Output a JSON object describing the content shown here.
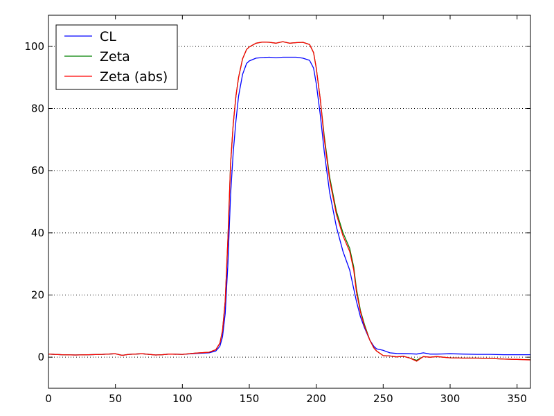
{
  "chart_data": {
    "type": "line",
    "xlim": [
      0,
      360
    ],
    "ylim": [
      -10,
      110
    ],
    "xticks": [
      0,
      50,
      100,
      150,
      200,
      250,
      300,
      350
    ],
    "yticks": [
      0,
      20,
      40,
      60,
      80,
      100
    ],
    "grid": "horizontal-dotted",
    "legend_position": "top-left",
    "series": [
      {
        "name": "CL",
        "color": "#0000ff",
        "x": [
          0,
          10,
          20,
          30,
          40,
          50,
          55,
          60,
          70,
          80,
          85,
          90,
          100,
          110,
          120,
          125,
          128,
          130,
          132,
          134,
          136,
          138,
          140,
          142,
          145,
          148,
          150,
          155,
          160,
          165,
          170,
          175,
          180,
          185,
          190,
          195,
          198,
          200,
          203,
          206,
          210,
          215,
          220,
          225,
          228,
          230,
          233,
          236,
          240,
          243,
          245,
          250,
          255,
          260,
          270,
          275,
          280,
          285,
          290,
          300,
          310,
          320,
          330,
          340,
          350,
          360
        ],
        "y": [
          1.0,
          0.8,
          0.7,
          0.8,
          0.9,
          1.1,
          0.6,
          0.9,
          1.1,
          0.7,
          0.8,
          1.0,
          0.9,
          1.2,
          1.4,
          2.0,
          3.5,
          6.5,
          14,
          30,
          52,
          66,
          76,
          84,
          91,
          94.5,
          95.3,
          96.2,
          96.4,
          96.5,
          96.3,
          96.5,
          96.5,
          96.5,
          96.2,
          95.5,
          93,
          88,
          78,
          66,
          53,
          42,
          34,
          28,
          22,
          18,
          13,
          9.5,
          5.5,
          3.5,
          2.7,
          2.2,
          1.4,
          1.2,
          1.1,
          1.0,
          1.4,
          1.0,
          1.0,
          1.1,
          1.0,
          0.9,
          0.9,
          0.8,
          0.8,
          0.8
        ]
      },
      {
        "name": "Zeta",
        "color": "#008000",
        "x": [
          0,
          10,
          20,
          30,
          40,
          50,
          55,
          60,
          70,
          80,
          85,
          90,
          100,
          110,
          120,
          125,
          128,
          130,
          132,
          134,
          136,
          138,
          140,
          142,
          145,
          148,
          150,
          155,
          160,
          165,
          170,
          175,
          180,
          185,
          190,
          195,
          198,
          200,
          203,
          206,
          210,
          215,
          220,
          225,
          228,
          230,
          233,
          236,
          240,
          243,
          245,
          250,
          255,
          260,
          265,
          270,
          275,
          280,
          285,
          290,
          300,
          310,
          320,
          330,
          340,
          350,
          360
        ],
        "y": [
          1.0,
          0.8,
          0.7,
          0.8,
          0.9,
          1.1,
          0.6,
          0.9,
          1.1,
          0.7,
          0.8,
          1.0,
          0.9,
          1.3,
          1.6,
          2.4,
          4.5,
          8.5,
          18,
          38,
          62,
          75,
          84,
          90,
          96,
          99,
          99.8,
          101,
          101.4,
          101.3,
          101.0,
          101.5,
          101.0,
          101.2,
          101.3,
          100.6,
          98,
          93,
          83,
          71,
          58,
          47,
          40,
          35,
          29,
          22,
          15,
          10.5,
          5.5,
          3.0,
          2.0,
          0.5,
          0.4,
          0.1,
          0.3,
          -0.3,
          -1.0,
          0.2,
          0.0,
          0.2,
          -0.2,
          -0.3,
          -0.3,
          -0.4,
          -0.6,
          -0.7,
          -0.8
        ]
      },
      {
        "name": "Zeta (abs)",
        "color": "#ff0000",
        "x": [
          0,
          10,
          20,
          30,
          40,
          50,
          55,
          60,
          70,
          80,
          85,
          90,
          100,
          110,
          120,
          125,
          128,
          130,
          132,
          134,
          136,
          138,
          140,
          142,
          145,
          148,
          150,
          155,
          160,
          165,
          170,
          175,
          180,
          185,
          190,
          195,
          198,
          200,
          203,
          206,
          210,
          215,
          220,
          225,
          228,
          230,
          233,
          236,
          240,
          243,
          245,
          250,
          255,
          260,
          265,
          270,
          275,
          280,
          285,
          290,
          300,
          310,
          320,
          330,
          340,
          350,
          360
        ],
        "y": [
          1.0,
          0.8,
          0.7,
          0.8,
          0.9,
          1.1,
          0.6,
          0.9,
          1.1,
          0.7,
          0.8,
          1.0,
          0.9,
          1.3,
          1.6,
          2.4,
          4.5,
          8.5,
          18,
          38,
          62,
          75,
          84,
          90,
          96,
          99,
          99.8,
          101,
          101.4,
          101.3,
          101.0,
          101.5,
          101.0,
          101.2,
          101.3,
          100.6,
          98,
          93,
          83,
          70,
          57,
          46,
          39,
          34,
          28,
          21,
          14.5,
          10,
          5.5,
          3.0,
          2.0,
          0.5,
          0.4,
          0.1,
          0.3,
          -0.3,
          -1.3,
          0.2,
          0.0,
          0.2,
          -0.2,
          -0.3,
          -0.3,
          -0.4,
          -0.6,
          -0.7,
          -0.9
        ]
      }
    ]
  }
}
